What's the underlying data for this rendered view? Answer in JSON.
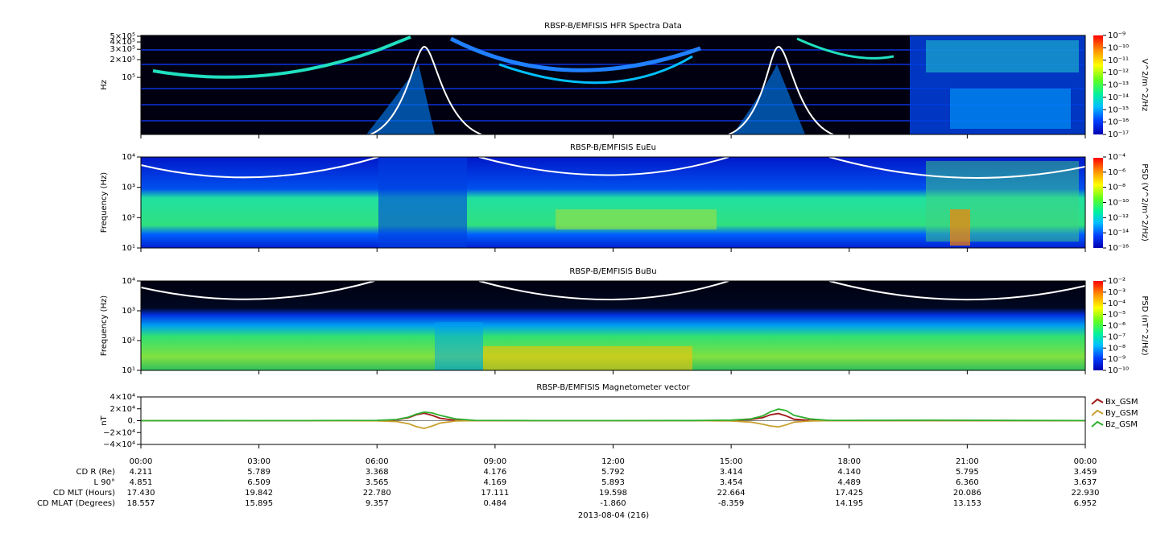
{
  "chart_data": [
    {
      "type": "spectrogram",
      "title": "RBSP-B/EMFISIS  HFR Spectra Data",
      "y_label": "Hz",
      "log_y": true,
      "ylim": [
        10700,
        516000
      ],
      "yticks": [
        {
          "value": 500000,
          "label": "5×10⁵"
        },
        {
          "value": 400000,
          "label": "4×10⁵"
        },
        {
          "value": 300000,
          "label": "3×10⁵"
        },
        {
          "value": 200000,
          "label": "2×10⁵"
        },
        {
          "value": 100000,
          "label": "10⁵"
        }
      ],
      "colorbar": {
        "label": "V^2/m^2/Hz",
        "lim": [
          1e-17,
          1e-09
        ],
        "ticks": [
          {
            "value": 1e-09,
            "label": "10⁻⁹"
          },
          {
            "value": 1e-10,
            "label": "10⁻¹⁰"
          },
          {
            "value": 1e-11,
            "label": "10⁻¹¹"
          },
          {
            "value": 1e-12,
            "label": "10⁻¹²"
          },
          {
            "value": 1e-13,
            "label": "10⁻¹³"
          },
          {
            "value": 1e-14,
            "label": "10⁻¹⁴"
          },
          {
            "value": 1e-15,
            "label": "10⁻¹⁵"
          },
          {
            "value": 1e-16,
            "label": "10⁻¹⁶"
          },
          {
            "value": 1e-17,
            "label": "10⁻¹⁷"
          }
        ]
      }
    },
    {
      "type": "spectrogram",
      "title": "RBSP-B/EMFISIS  EuEu",
      "y_label": "Frequency (Hz)",
      "log_y": true,
      "ylim": [
        10,
        10000
      ],
      "yticks": [
        {
          "value": 10000,
          "label": "10⁴"
        },
        {
          "value": 1000,
          "label": "10³"
        },
        {
          "value": 100,
          "label": "10²"
        },
        {
          "value": 10,
          "label": "10¹"
        }
      ],
      "colorbar": {
        "label": "PSD (V^2/m^2/Hz)",
        "lim": [
          1e-16,
          0.0001
        ],
        "ticks": [
          {
            "value": 0.0001,
            "label": "10⁻⁴"
          },
          {
            "value": 1e-06,
            "label": "10⁻⁶"
          },
          {
            "value": 1e-08,
            "label": "10⁻⁸"
          },
          {
            "value": 1e-10,
            "label": "10⁻¹⁰"
          },
          {
            "value": 1e-12,
            "label": "10⁻¹²"
          },
          {
            "value": 1e-14,
            "label": "10⁻¹⁴"
          },
          {
            "value": 1e-16,
            "label": "10⁻¹⁶"
          }
        ]
      }
    },
    {
      "type": "spectrogram",
      "title": "RBSP-B/EMFISIS  BuBu",
      "y_label": "Frequency (Hz)",
      "log_y": true,
      "ylim": [
        10,
        10000
      ],
      "yticks": [
        {
          "value": 10000,
          "label": "10⁴"
        },
        {
          "value": 1000,
          "label": "10³"
        },
        {
          "value": 100,
          "label": "10²"
        },
        {
          "value": 10,
          "label": "10¹"
        }
      ],
      "colorbar": {
        "label": "PSD (nT^2/Hz)",
        "lim": [
          1e-10,
          0.01
        ],
        "ticks": [
          {
            "value": 0.01,
            "label": "10⁻²"
          },
          {
            "value": 0.001,
            "label": "10⁻³"
          },
          {
            "value": 0.0001,
            "label": "10⁻⁴"
          },
          {
            "value": 1e-05,
            "label": "10⁻⁵"
          },
          {
            "value": 1e-06,
            "label": "10⁻⁶"
          },
          {
            "value": 1e-07,
            "label": "10⁻⁷"
          },
          {
            "value": 1e-08,
            "label": "10⁻⁸"
          },
          {
            "value": 1e-09,
            "label": "10⁻⁹"
          },
          {
            "value": 1e-10,
            "label": "10⁻¹⁰"
          }
        ]
      }
    },
    {
      "type": "line",
      "title": "RBSP-B/EMFISIS  Magnetometer vector",
      "y_label": "nT",
      "ylim": [
        -40000,
        40000
      ],
      "yticks": [
        {
          "value": 40000,
          "label": "4×10⁴"
        },
        {
          "value": 20000,
          "label": "2×10⁴"
        },
        {
          "value": 0,
          "label": "0."
        },
        {
          "value": -20000,
          "label": "−2×10⁴"
        },
        {
          "value": -40000,
          "label": "−4×10⁴"
        }
      ],
      "x": [
        0,
        4,
        6,
        6.5,
        6.8,
        7.0,
        7.2,
        7.4,
        7.6,
        8.0,
        8.5,
        10,
        14,
        15,
        15.5,
        15.8,
        16.0,
        16.2,
        16.4,
        16.6,
        17,
        17.5,
        20,
        24
      ],
      "series": [
        {
          "name": "Bx_GSM",
          "color": "#a01818",
          "values": [
            0,
            0,
            300,
            1500,
            5000,
            10000,
            12500,
            9000,
            4000,
            500,
            0,
            0,
            0,
            500,
            2000,
            5000,
            10000,
            12000,
            8000,
            2500,
            500,
            0,
            300,
            0
          ]
        },
        {
          "name": "By_GSM",
          "color": "#c8a030",
          "values": [
            0,
            0,
            -300,
            -1500,
            -5000,
            -10000,
            -13000,
            -9000,
            -4000,
            -600,
            0,
            0,
            0,
            -600,
            -2500,
            -6000,
            -9000,
            -10500,
            -7000,
            -2500,
            -500,
            0,
            200,
            0
          ]
        },
        {
          "name": "Bz_GSM",
          "color": "#30b030",
          "values": [
            0,
            200,
            600,
            2000,
            6000,
            11000,
            14500,
            13000,
            9000,
            3000,
            500,
            200,
            300,
            1000,
            3000,
            8000,
            15000,
            19500,
            17000,
            9000,
            3000,
            600,
            800,
            200
          ]
        }
      ]
    }
  ],
  "x_axis": {
    "xlim": [
      0,
      24
    ],
    "xticks": [
      {
        "value": 0,
        "label": "00:00"
      },
      {
        "value": 3,
        "label": "03:00"
      },
      {
        "value": 6,
        "label": "06:00"
      },
      {
        "value": 9,
        "label": "09:00"
      },
      {
        "value": 12,
        "label": "12:00"
      },
      {
        "value": 15,
        "label": "15:00"
      },
      {
        "value": 18,
        "label": "18:00"
      },
      {
        "value": 21,
        "label": "21:00"
      },
      {
        "value": 24,
        "label": "00:00"
      }
    ],
    "date": "2013-08-04 (216)"
  },
  "ephemeris": {
    "rows": [
      {
        "label": "CD R (Re)",
        "values": [
          "4.211",
          "5.789",
          "3.368",
          "4.176",
          "5.792",
          "3.414",
          "4.140",
          "5.795",
          "3.459"
        ]
      },
      {
        "label": "L 90°",
        "values": [
          "4.851",
          "6.509",
          "3.565",
          "4.169",
          "5.893",
          "3.454",
          "4.489",
          "6.360",
          "3.637"
        ]
      },
      {
        "label": "CD MLT (Hours)",
        "values": [
          "17.430",
          "19.842",
          "22.780",
          "17.111",
          "19.598",
          "22.664",
          "17.425",
          "20.086",
          "22.930"
        ]
      },
      {
        "label": "CD MLAT (Degrees)",
        "values": [
          "18.557",
          "15.895",
          "9.357",
          "0.484",
          "-1.860",
          "-8.359",
          "14.195",
          "13.153",
          "6.952"
        ]
      }
    ]
  }
}
